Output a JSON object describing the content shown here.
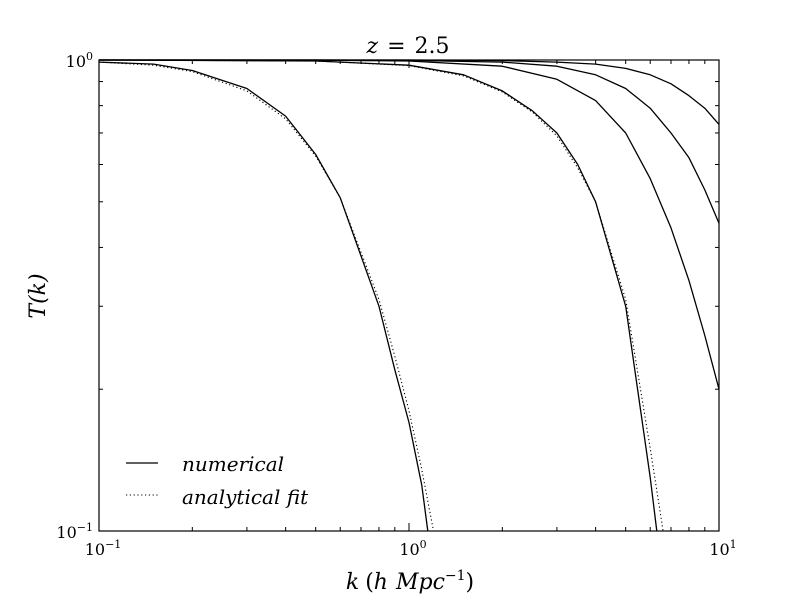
{
  "chart_data": {
    "type": "line",
    "title_var": "z",
    "title_eq": "=",
    "title_value": "2.5",
    "ylabel": "T(k)",
    "xlabel_var": "k",
    "xlabel_unit_h": "h",
    "xlabel_unit_mpc": "Mpc",
    "xlabel_unit_exp": "−1",
    "xscale": "log",
    "yscale": "log",
    "xlim": [
      0.1,
      10
    ],
    "ylim": [
      0.1,
      1
    ],
    "x_ticks": [
      {
        "base": "10",
        "exp": "−1"
      },
      {
        "base": "10",
        "exp": "0"
      },
      {
        "base": "10",
        "exp": "1"
      }
    ],
    "y_ticks": [
      {
        "base": "10",
        "exp": "−1"
      },
      {
        "base": "10",
        "exp": "0"
      }
    ],
    "legend": {
      "position": "lower-left",
      "items": [
        {
          "label": "numerical",
          "style": "solid"
        },
        {
          "label": "analytical fit",
          "style": "dotted"
        }
      ]
    },
    "series": [
      {
        "style": "solid",
        "x": [
          0.1,
          0.15,
          0.2,
          0.3,
          0.4,
          0.5,
          0.6,
          0.8,
          0.9,
          1.0,
          1.1,
          1.15
        ],
        "y": [
          0.99,
          0.98,
          0.95,
          0.87,
          0.76,
          0.63,
          0.51,
          0.3,
          0.22,
          0.17,
          0.125,
          0.1
        ]
      },
      {
        "style": "dotted",
        "x": [
          0.1,
          0.15,
          0.2,
          0.3,
          0.4,
          0.5,
          0.6,
          0.8,
          0.9,
          1.0,
          1.1,
          1.2
        ],
        "y": [
          0.99,
          0.975,
          0.945,
          0.86,
          0.75,
          0.625,
          0.51,
          0.31,
          0.235,
          0.18,
          0.135,
          0.1
        ]
      },
      {
        "style": "solid",
        "x": [
          0.1,
          0.5,
          1.0,
          1.5,
          2.0,
          2.5,
          3.0,
          3.5,
          4.0,
          5.0,
          6.0,
          6.3
        ],
        "y": [
          1.0,
          0.995,
          0.975,
          0.93,
          0.86,
          0.78,
          0.7,
          0.6,
          0.5,
          0.3,
          0.13,
          0.1
        ]
      },
      {
        "style": "dotted",
        "x": [
          0.1,
          0.5,
          1.0,
          1.5,
          2.0,
          2.5,
          3.0,
          3.5,
          4.0,
          5.0,
          6.0,
          6.6
        ],
        "y": [
          1.0,
          0.995,
          0.973,
          0.925,
          0.855,
          0.775,
          0.69,
          0.59,
          0.5,
          0.31,
          0.15,
          0.1
        ]
      },
      {
        "style": "solid",
        "x": [
          0.1,
          0.5,
          1.0,
          2.0,
          3.0,
          4.0,
          5.0,
          6.0,
          7.0,
          8.0,
          9.0,
          10.0
        ],
        "y": [
          1.0,
          0.999,
          0.995,
          0.97,
          0.91,
          0.82,
          0.7,
          0.56,
          0.44,
          0.34,
          0.26,
          0.2
        ]
      },
      {
        "style": "solid",
        "x": [
          0.1,
          0.5,
          1.0,
          2.0,
          3.0,
          4.0,
          5.0,
          6.0,
          7.0,
          8.0,
          9.0,
          10.0
        ],
        "y": [
          1.0,
          1.0,
          0.998,
          0.99,
          0.97,
          0.93,
          0.87,
          0.79,
          0.7,
          0.62,
          0.53,
          0.45
        ]
      },
      {
        "style": "solid",
        "x": [
          0.1,
          0.5,
          1.0,
          2.0,
          3.0,
          4.0,
          5.0,
          6.0,
          7.0,
          8.0,
          9.0,
          10.0
        ],
        "y": [
          1.0,
          1.0,
          1.0,
          0.997,
          0.99,
          0.98,
          0.96,
          0.93,
          0.89,
          0.84,
          0.79,
          0.73
        ]
      }
    ]
  }
}
